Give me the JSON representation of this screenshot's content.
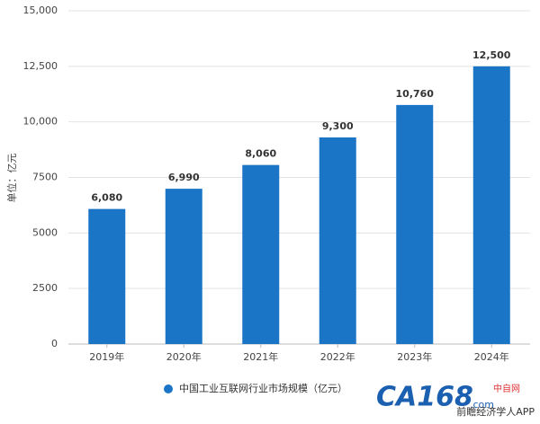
{
  "chart_data": {
    "type": "bar",
    "y_label": "单位：亿元",
    "categories": [
      "2019年",
      "2020年",
      "2021年",
      "2022年",
      "2023年",
      "2024年"
    ],
    "series": [
      {
        "name": "中国工业互联网行业市场规模（亿元）",
        "color": "#1b75c6",
        "values": [
          6080,
          6990,
          8060,
          9300,
          10760,
          12500
        ],
        "value_labels": [
          "6,080",
          "6,990",
          "8,060",
          "9,300",
          "10,760",
          "12,500"
        ]
      }
    ],
    "ylim": [
      0,
      15000
    ],
    "yticks": [
      0,
      2500,
      5000,
      7500,
      {
        "value": 10000,
        "label": "10,000"
      },
      {
        "value": 12500,
        "label": "12,500"
      },
      {
        "value": 15000,
        "label": "15,000"
      }
    ],
    "grid": true,
    "legend": "bottom"
  },
  "branding": {
    "logo": "CA168",
    "logo_domain": ".com",
    "logo_cn": "中自网",
    "source": "前瞻经济学人APP"
  }
}
